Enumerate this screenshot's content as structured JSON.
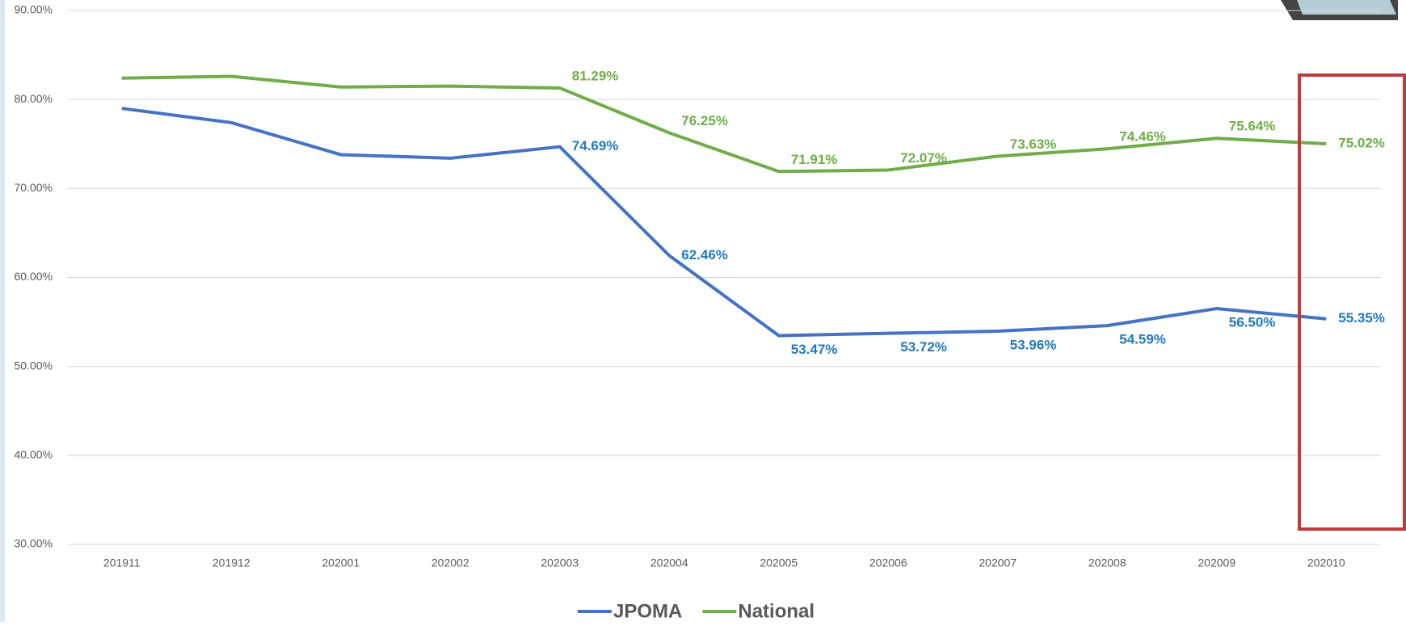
{
  "chart_data": {
    "type": "line",
    "categories": [
      "201911",
      "201912",
      "202001",
      "202002",
      "202003",
      "202004",
      "202005",
      "202006",
      "202007",
      "202008",
      "202009",
      "202010"
    ],
    "series": [
      {
        "name": "JPOMA",
        "color": "#4472c4",
        "label_color": "#1f7ac0",
        "values": [
          79.0,
          77.4,
          73.8,
          73.4,
          74.69,
          62.46,
          53.47,
          53.72,
          53.96,
          54.59,
          56.5,
          55.35
        ],
        "value_labels": [
          null,
          null,
          null,
          null,
          "74.69%",
          "62.46%",
          "53.47%",
          "53.72%",
          "53.96%",
          "54.59%",
          "56.50%",
          "55.35%"
        ]
      },
      {
        "name": "National",
        "color": "#70ad47",
        "label_color": "#70ad47",
        "values": [
          82.4,
          82.6,
          81.4,
          81.5,
          81.29,
          76.25,
          71.91,
          72.07,
          73.63,
          74.46,
          75.64,
          75.02
        ],
        "value_labels": [
          null,
          null,
          null,
          null,
          "81.29%",
          "76.25%",
          "71.91%",
          "72.07%",
          "73.63%",
          "74.46%",
          "75.64%",
          "75.02%"
        ]
      }
    ],
    "ylim": [
      30,
      90
    ],
    "yticks": [
      {
        "value": 30,
        "label": "30.00%"
      },
      {
        "value": 40,
        "label": "40.00%"
      },
      {
        "value": 50,
        "label": "50.00%"
      },
      {
        "value": 60,
        "label": "60.00%"
      },
      {
        "value": 70,
        "label": "70.00%"
      },
      {
        "value": 80,
        "label": "80.00%"
      },
      {
        "value": 90,
        "label": "90.00%"
      }
    ],
    "grid": true,
    "legend": "bottom"
  }
}
